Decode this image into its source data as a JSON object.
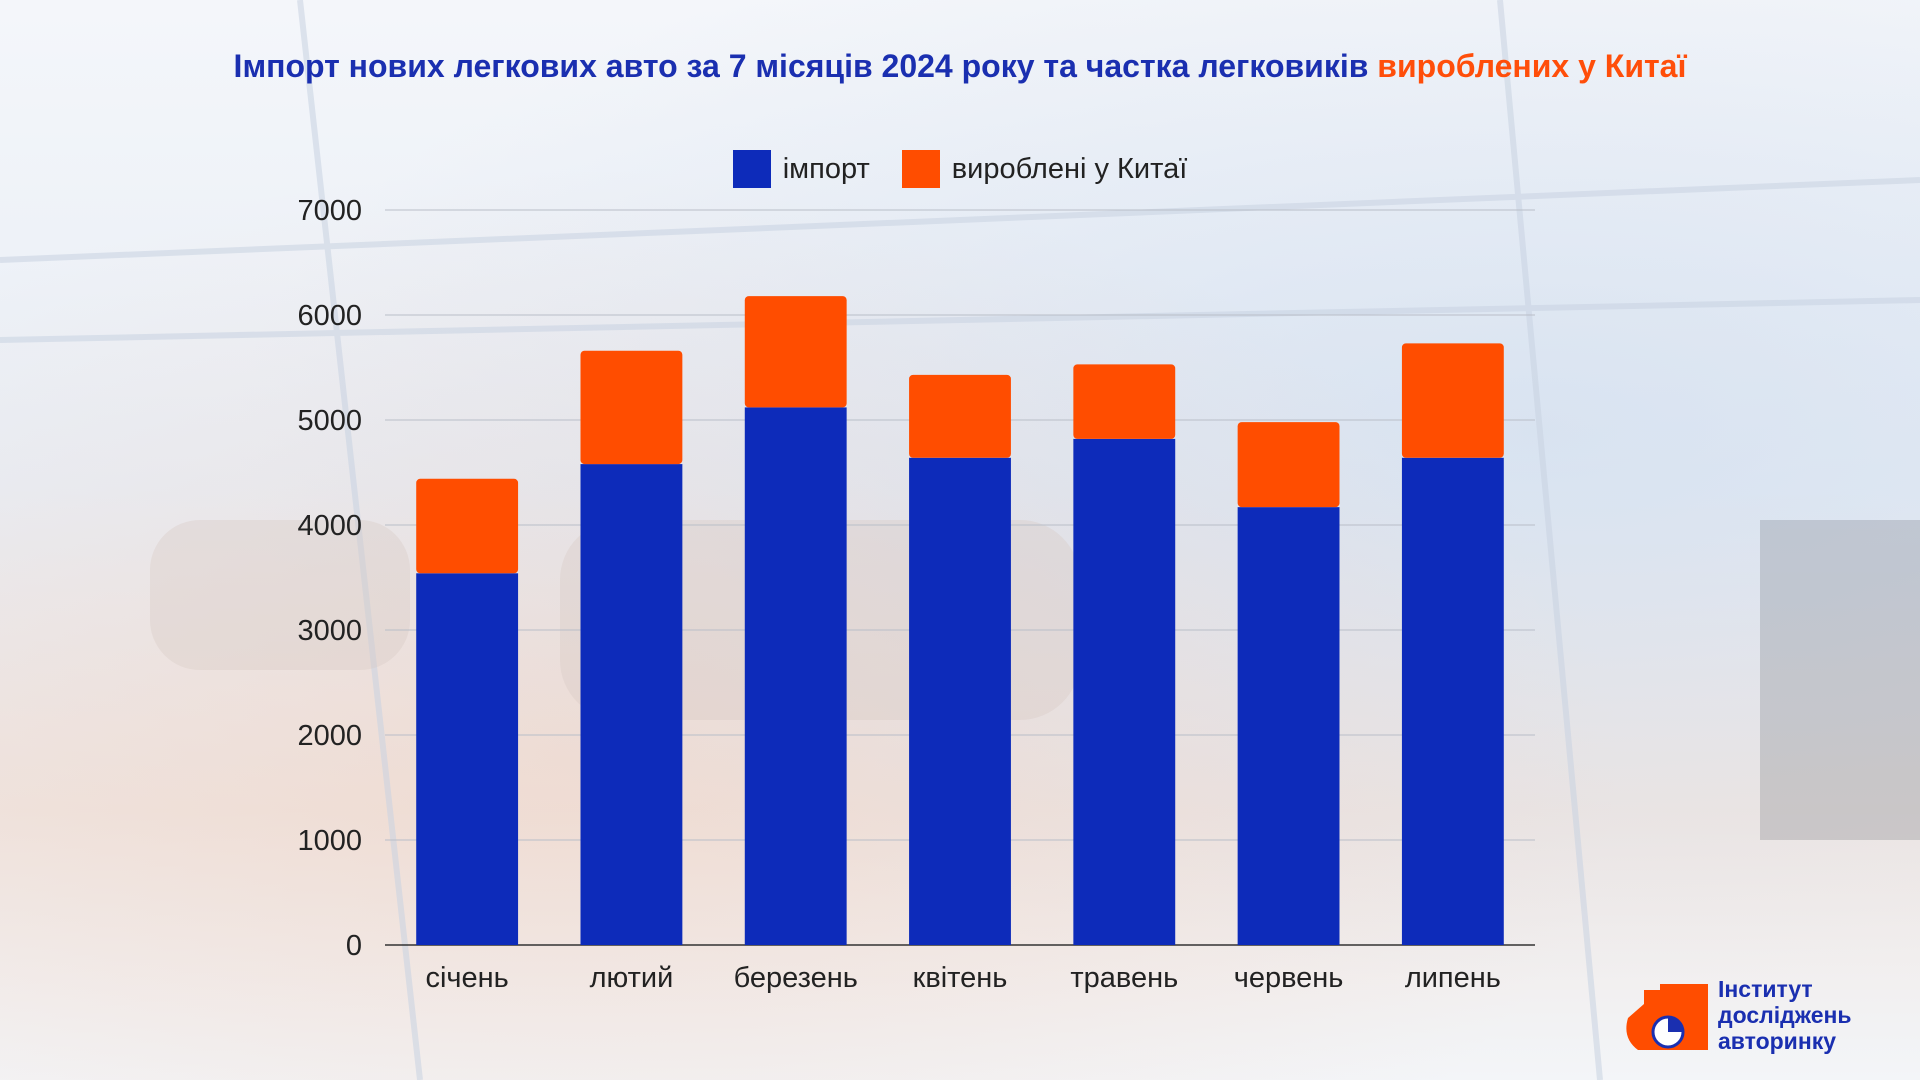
{
  "title": {
    "main": "Імпорт нових легкових авто за 7 місяців 2024 року та частка легковиків",
    "accent": "вироблених у Китаї"
  },
  "colors": {
    "import": "#0d2bba",
    "china": "#ff4d00",
    "text": "#222222",
    "title": "#1a2fb0"
  },
  "logo": {
    "line1": "Інститут",
    "line2": "досліджень",
    "line3": "авторинку",
    "icon": "logo-house-pie-icon"
  },
  "chart_data": {
    "type": "bar",
    "stacked": true,
    "title": "Імпорт нових легкових авто за 7 місяців 2024 року та частка легковиків вироблених у Китаї",
    "categories": [
      "січень",
      "лютий",
      "березень",
      "квітень",
      "травень",
      "червень",
      "липень"
    ],
    "series": [
      {
        "name": "імпорт",
        "values": [
          3540,
          4580,
          5120,
          4640,
          4820,
          4170,
          4640
        ],
        "color": "#0d2bba"
      },
      {
        "name": "вироблені у Китаї",
        "values": [
          900,
          1080,
          1060,
          790,
          710,
          810,
          1090
        ],
        "color": "#ff4d00"
      }
    ],
    "ylim": [
      0,
      7000
    ],
    "yticks": [
      0,
      1000,
      2000,
      3000,
      4000,
      5000,
      6000,
      7000
    ],
    "xlabel": "",
    "ylabel": "",
    "grid": true,
    "legend": "top-center"
  }
}
